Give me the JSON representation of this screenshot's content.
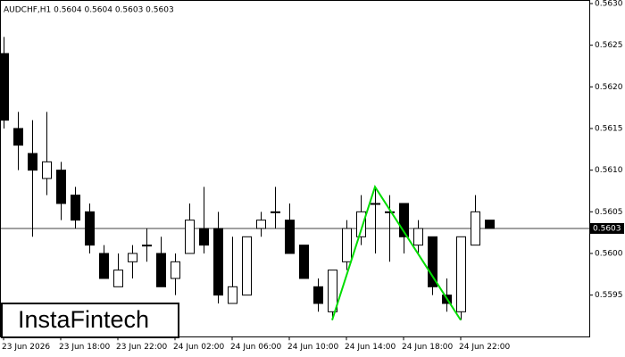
{
  "chart_data": {
    "type": "candlestick",
    "title": "AUDCHF,H1  0.5604 0.5604 0.5603 0.5603",
    "watermark": "InstaFintech",
    "categories": [
      "23 Jun 2026",
      null,
      null,
      null,
      "23 Jun 18:00",
      null,
      null,
      null,
      "23 Jun 22:00",
      null,
      null,
      null,
      "24 Jun 02:00",
      null,
      null,
      null,
      "24 Jun 06:00",
      null,
      null,
      null,
      "24 Jun 10:00",
      null,
      null,
      null,
      "24 Jun 14:00",
      null,
      null,
      null,
      "24 Jun 18:00",
      null,
      null,
      null,
      "24 Jun 22:00",
      null,
      null
    ],
    "open": [
      0.5624,
      0.5615,
      0.5612,
      0.5609,
      0.561,
      0.5607,
      0.5605,
      0.56,
      0.5596,
      0.5599,
      0.5601,
      0.56,
      0.5597,
      0.56,
      0.5603,
      0.5603,
      0.5594,
      0.5595,
      0.5603,
      0.5605,
      0.5604,
      0.5601,
      0.5596,
      0.5593,
      0.5599,
      0.5602,
      0.5606,
      0.5605,
      0.5606,
      0.5601,
      0.5602,
      0.5595,
      0.5593,
      0.5601,
      0.5604
    ],
    "high": [
      0.5626,
      0.5617,
      0.5616,
      0.5617,
      0.5611,
      0.5608,
      0.5606,
      0.5601,
      0.56,
      0.5601,
      0.5603,
      0.5602,
      0.56,
      0.5606,
      0.5608,
      0.5605,
      0.5602,
      0.5602,
      0.5605,
      0.5608,
      0.5606,
      0.5601,
      0.5597,
      0.5598,
      0.5604,
      0.5607,
      0.5608,
      0.5607,
      0.5606,
      0.5604,
      0.5602,
      0.5597,
      0.5602,
      0.5607,
      0.5604
    ],
    "low": [
      0.5615,
      0.561,
      0.5602,
      0.5607,
      0.5604,
      0.5603,
      0.56,
      0.5597,
      0.5596,
      0.5597,
      0.5599,
      0.5596,
      0.5595,
      0.56,
      0.56,
      0.5594,
      0.5594,
      0.5595,
      0.5602,
      0.5603,
      0.56,
      0.5597,
      0.5593,
      0.5592,
      0.5598,
      0.5601,
      0.56,
      0.5599,
      0.56,
      0.56,
      0.5595,
      0.5593,
      0.5592,
      0.5601,
      0.5603
    ],
    "close": [
      0.5616,
      0.5613,
      0.561,
      0.5611,
      0.5606,
      0.5604,
      0.5601,
      0.5597,
      0.5598,
      0.56,
      0.5601,
      0.5596,
      0.5599,
      0.5604,
      0.5601,
      0.5595,
      0.5596,
      0.5602,
      0.5604,
      0.5605,
      0.56,
      0.5597,
      0.5594,
      0.5598,
      0.5603,
      0.5605,
      0.5606,
      0.5605,
      0.5602,
      0.5603,
      0.5596,
      0.5594,
      0.5602,
      0.5605,
      0.5603
    ],
    "up_color": "#ffffff",
    "down_color": "#000000",
    "ylim": [
      0.559,
      0.563
    ],
    "yticks": [
      {
        "value": 0.563,
        "label": "0.5630"
      },
      {
        "value": 0.5625,
        "label": "0.5625"
      },
      {
        "value": 0.562,
        "label": "0.5620"
      },
      {
        "value": 0.5615,
        "label": "0.5615"
      },
      {
        "value": 0.561,
        "label": "0.5610"
      },
      {
        "value": 0.5605,
        "label": "0.5605"
      },
      {
        "value": 0.56,
        "label": "0.5600"
      },
      {
        "value": 0.5595,
        "label": "0.5595"
      }
    ],
    "current_price": 0.5603,
    "pattern": {
      "color": "#00dd00",
      "x": [
        23,
        26,
        32
      ],
      "y": [
        0.5592,
        0.5608,
        0.5592
      ]
    }
  }
}
